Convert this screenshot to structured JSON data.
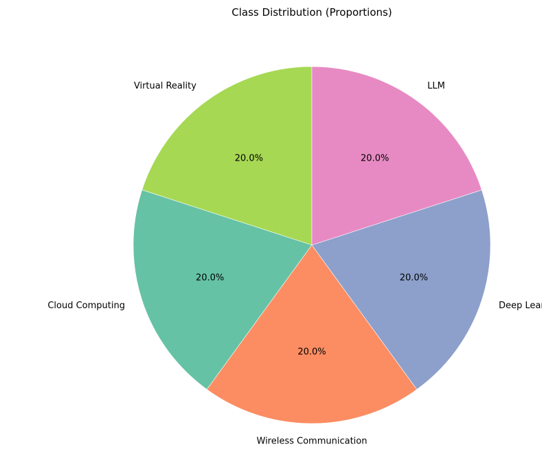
{
  "chart_data": {
    "type": "pie",
    "title": "Class Distribution (Proportions)",
    "categories": [
      "Virtual Reality",
      "Cloud Computing",
      "Wireless Communication",
      "Deep Learning",
      "LLM"
    ],
    "values": [
      20.0,
      20.0,
      20.0,
      20.0,
      20.0
    ],
    "percent_labels": [
      "20.0%",
      "20.0%",
      "20.0%",
      "20.0%",
      "20.0%"
    ],
    "colors": [
      "#a6d854",
      "#66c2a5",
      "#fc8d62",
      "#8da0cb",
      "#e78ac3"
    ],
    "start_angle_deg": 90,
    "direction": "counterclockwise",
    "legend": "none"
  }
}
